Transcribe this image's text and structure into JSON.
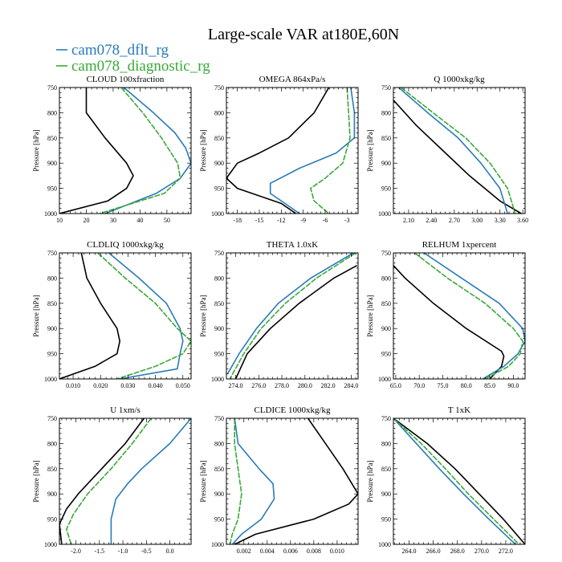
{
  "title": "Large-scale VAR at180E,60N",
  "legend": [
    {
      "name": "cam078_dflt_rg",
      "color": "#2a7bb8"
    },
    {
      "name": "cam078_diagnostic_rg",
      "color": "#3aa838"
    }
  ],
  "reference_color": "#000000",
  "ylabel": "Pressure [hPa]",
  "chart_data": [
    {
      "type": "line",
      "title": "CLOUD 100xfraction",
      "ylabel": "Pressure [hPa]",
      "xlim": [
        10,
        59
      ],
      "ylim": [
        1000,
        750
      ],
      "xticks": [
        10,
        20,
        30,
        40,
        50
      ],
      "xticklabels": [
        "10",
        "20",
        "30",
        "40",
        "50"
      ],
      "yticks": [
        750,
        800,
        850,
        900,
        950,
        1000
      ],
      "series": [
        {
          "color": "black",
          "y": [
            750,
            800,
            850,
            900,
            925,
            950,
            975,
            1000
          ],
          "x": [
            20,
            20,
            27,
            35,
            37.5,
            35,
            28,
            10
          ]
        },
        {
          "name": "cam078_dflt_rg",
          "color": "#2a7bb8",
          "y": [
            750,
            800,
            840,
            870,
            900,
            930,
            960,
            1000
          ],
          "x": [
            34,
            45,
            53,
            57,
            59,
            55,
            46,
            27
          ]
        },
        {
          "name": "cam078_diagnostic_rg",
          "color": "#3aa838",
          "y": [
            750,
            800,
            850,
            900,
            930,
            960,
            1000
          ],
          "x": [
            33,
            41,
            48,
            54,
            55,
            49,
            25
          ]
        }
      ]
    },
    {
      "type": "line",
      "title": "OMEGA  864xPa/s",
      "ylabel": "Pressure [hPa]",
      "xlim": [
        -19.5,
        -1.5
      ],
      "ylim": [
        1000,
        750
      ],
      "xticks": [
        -18,
        -15,
        -12,
        -9,
        -6,
        -3
      ],
      "xticklabels": [
        "-18",
        "-15",
        "-12",
        "-9",
        "-6",
        "-3"
      ],
      "yticks": [
        750,
        800,
        850,
        900,
        950,
        1000
      ],
      "series": [
        {
          "color": "black",
          "y": [
            750,
            800,
            850,
            880,
            900,
            930,
            950,
            980,
            1000
          ],
          "x": [
            -5.5,
            -7.5,
            -11,
            -15,
            -18,
            -19.5,
            -18,
            -12,
            -10
          ]
        },
        {
          "name": "cam078_dflt_rg",
          "color": "#2a7bb8",
          "y": [
            750,
            800,
            850,
            880,
            910,
            940,
            960,
            980,
            1000
          ],
          "x": [
            -2.5,
            -2.0,
            -2.0,
            -4.5,
            -9.5,
            -13.5,
            -13.5,
            -11.5,
            -9.5
          ]
        },
        {
          "name": "cam078_diagnostic_rg",
          "color": "#3aa838",
          "y": [
            750,
            800,
            850,
            900,
            930,
            950,
            975,
            1000
          ],
          "x": [
            -3.0,
            -2.8,
            -2.6,
            -3.6,
            -6.0,
            -8.0,
            -7.5,
            -5.5
          ]
        }
      ]
    },
    {
      "type": "line",
      "title": "Q  1000xkg/kg",
      "ylabel": "Pressure [hPa]",
      "xlim": [
        1.9,
        3.63
      ],
      "ylim": [
        1000,
        750
      ],
      "xticks": [
        2.1,
        2.4,
        2.7,
        3.0,
        3.3,
        3.6
      ],
      "xticklabels": [
        "2.10",
        "2.40",
        "2.70",
        "3.00",
        "3.30",
        "3.60"
      ],
      "yticks": [
        750,
        800,
        850,
        900,
        950,
        1000
      ],
      "series": [
        {
          "color": "black",
          "y": [
            775,
            825,
            875,
            925,
            975,
            1000
          ],
          "x": [
            1.9,
            2.2,
            2.55,
            2.9,
            3.3,
            3.58
          ]
        },
        {
          "name": "cam078_dflt_rg",
          "color": "#2a7bb8",
          "y": [
            750,
            800,
            850,
            900,
            950,
            1000
          ],
          "x": [
            1.97,
            2.35,
            2.75,
            3.05,
            3.3,
            3.4
          ]
        },
        {
          "name": "cam078_diagnostic_rg",
          "color": "#3aa838",
          "y": [
            750,
            800,
            850,
            900,
            950,
            1000
          ],
          "x": [
            2.0,
            2.42,
            2.85,
            3.17,
            3.4,
            3.5
          ]
        }
      ]
    },
    {
      "type": "line",
      "title": "CLDLIQ  1000xkg/kg",
      "ylabel": "Pressure [hPa]",
      "xlim": [
        0.005,
        0.053
      ],
      "ylim": [
        1000,
        750
      ],
      "xticks": [
        0.01,
        0.02,
        0.03,
        0.04,
        0.05
      ],
      "xticklabels": [
        "0.010",
        "0.020",
        "0.030",
        "0.040",
        "0.050"
      ],
      "yticks": [
        750,
        800,
        850,
        900,
        950,
        1000
      ],
      "series": [
        {
          "color": "black",
          "y": [
            750,
            800,
            850,
            900,
            925,
            950,
            975,
            1000
          ],
          "x": [
            0.013,
            0.015,
            0.02,
            0.026,
            0.027,
            0.026,
            0.018,
            0.005
          ]
        },
        {
          "name": "cam078_dflt_rg",
          "color": "#2a7bb8",
          "y": [
            750,
            800,
            850,
            900,
            925,
            950,
            980,
            1000
          ],
          "x": [
            0.023,
            0.034,
            0.044,
            0.049,
            0.05,
            0.049,
            0.048,
            0.027
          ]
        },
        {
          "name": "cam078_diagnostic_rg",
          "color": "#3aa838",
          "y": [
            750,
            800,
            850,
            900,
            925,
            950,
            975,
            1000
          ],
          "x": [
            0.019,
            0.029,
            0.04,
            0.048,
            0.053,
            0.05,
            0.04,
            0.026
          ]
        }
      ]
    },
    {
      "type": "line",
      "title": "THETA  1.0xK",
      "ylabel": "Pressure [hPa]",
      "xlim": [
        273.2,
        284.6
      ],
      "ylim": [
        1000,
        750
      ],
      "xticks": [
        274,
        276,
        278,
        280,
        282,
        284
      ],
      "xticklabels": [
        "274.0",
        "276.0",
        "278.0",
        "280.0",
        "282.0",
        "284.0"
      ],
      "yticks": [
        750,
        800,
        850,
        900,
        950,
        1000
      ],
      "series": [
        {
          "color": "black",
          "y": [
            775,
            800,
            850,
            900,
            950,
            1000
          ],
          "x": [
            284.5,
            282.5,
            279.5,
            277.0,
            275.0,
            274.0
          ]
        },
        {
          "name": "cam078_dflt_rg",
          "color": "#2a7bb8",
          "y": [
            750,
            800,
            850,
            900,
            950,
            990
          ],
          "x": [
            284.2,
            280.5,
            277.7,
            275.8,
            274.3,
            273.3
          ]
        },
        {
          "name": "cam078_diagnostic_rg",
          "color": "#3aa838",
          "y": [
            750,
            800,
            850,
            900,
            950,
            1000
          ],
          "x": [
            284.4,
            281.0,
            278.3,
            276.2,
            274.7,
            273.5
          ]
        }
      ]
    },
    {
      "type": "line",
      "title": "RELHUM  1xpercent",
      "ylabel": "Pressure [hPa]",
      "xlim": [
        64.5,
        92.5
      ],
      "ylim": [
        1000,
        750
      ],
      "xticks": [
        65,
        70,
        75,
        80,
        85,
        90
      ],
      "xticklabels": [
        "65.0",
        "70.0",
        "75.0",
        "80.0",
        "85.0",
        "90.0"
      ],
      "yticks": [
        750,
        800,
        850,
        900,
        950,
        1000
      ],
      "series": [
        {
          "color": "black",
          "y": [
            775,
            800,
            850,
            900,
            945,
            955,
            975,
            1000
          ],
          "x": [
            64.5,
            67,
            73,
            80,
            87.5,
            88,
            87.5,
            85
          ]
        },
        {
          "name": "cam078_dflt_rg",
          "color": "#2a7bb8",
          "y": [
            750,
            800,
            850,
            900,
            925,
            950,
            975,
            1000
          ],
          "x": [
            71,
            79,
            87,
            92,
            92.5,
            91,
            88,
            83.5
          ]
        },
        {
          "name": "cam078_diagnostic_rg",
          "color": "#3aa838",
          "y": [
            750,
            800,
            850,
            900,
            925,
            950,
            975,
            1000
          ],
          "x": [
            69,
            76,
            84,
            90,
            92,
            91.5,
            89,
            84
          ]
        }
      ]
    },
    {
      "type": "line",
      "title": "U  1xm/s",
      "ylabel": "Pressure [hPa]",
      "xlim": [
        -2.35,
        0.45
      ],
      "ylim": [
        1000,
        750
      ],
      "xticks": [
        -2.0,
        -1.5,
        -1.0,
        -0.5,
        0.0
      ],
      "xticklabels": [
        "-2.0",
        "-1.5",
        "-1.0",
        "-0.5",
        "0.0"
      ],
      "yticks": [
        750,
        800,
        850,
        900,
        950,
        1000
      ],
      "series": [
        {
          "color": "black",
          "y": [
            750,
            800,
            850,
            900,
            930,
            960,
            1000
          ],
          "x": [
            -0.55,
            -0.95,
            -1.45,
            -1.95,
            -2.2,
            -2.35,
            -2.3
          ]
        },
        {
          "name": "cam078_dflt_rg",
          "color": "#2a7bb8",
          "y": [
            750,
            800,
            850,
            880,
            910,
            950,
            1000
          ],
          "x": [
            0.45,
            0.0,
            -0.6,
            -0.9,
            -1.15,
            -1.25,
            -1.25
          ]
        },
        {
          "name": "cam078_diagnostic_rg",
          "color": "#3aa838",
          "y": [
            750,
            800,
            850,
            900,
            940,
            970,
            1000
          ],
          "x": [
            -0.4,
            -0.8,
            -1.25,
            -1.75,
            -2.05,
            -2.2,
            -2.1
          ]
        }
      ]
    },
    {
      "type": "line",
      "title": "CLDICE  1000xkg/kg",
      "ylabel": "Pressure [hPa]",
      "xlim": [
        0.0005,
        0.0118
      ],
      "ylim": [
        1000,
        750
      ],
      "xticks": [
        0.002,
        0.004,
        0.006,
        0.008,
        0.01
      ],
      "xticklabels": [
        "0.002",
        "0.004",
        "0.006",
        "0.008",
        "0.010"
      ],
      "yticks": [
        750,
        800,
        850,
        900,
        950,
        1000
      ],
      "series": [
        {
          "color": "black",
          "y": [
            750,
            800,
            850,
            900,
            920,
            950,
            980,
            1000
          ],
          "x": [
            0.0075,
            0.009,
            0.0105,
            0.0118,
            0.011,
            0.008,
            0.003,
            0.0012
          ]
        },
        {
          "name": "cam078_dflt_rg",
          "color": "#2a7bb8",
          "y": [
            750,
            800,
            850,
            880,
            910,
            950,
            980,
            1000
          ],
          "x": [
            0.0012,
            0.0015,
            0.0033,
            0.0045,
            0.0046,
            0.0035,
            0.0018,
            0.001
          ]
        },
        {
          "name": "cam078_diagnostic_rg",
          "color": "#3aa838",
          "y": [
            750,
            800,
            850,
            900,
            950,
            980,
            1000
          ],
          "x": [
            0.0012,
            0.0012,
            0.0015,
            0.0018,
            0.0015,
            0.001,
            0.0008
          ]
        }
      ]
    },
    {
      "type": "line",
      "title": "T  1xK",
      "ylabel": "Pressure [hPa]",
      "xlim": [
        262.7,
        273.6
      ],
      "ylim": [
        1000,
        750
      ],
      "xticks": [
        264,
        266,
        268,
        270,
        272
      ],
      "xticklabels": [
        "264.0",
        "266.0",
        "268.0",
        "270.0",
        "272.0"
      ],
      "yticks": [
        750,
        800,
        850,
        900,
        950,
        1000
      ],
      "series": [
        {
          "color": "black",
          "y": [
            750,
            800,
            850,
            900,
            950,
            1000
          ],
          "x": [
            262.7,
            265.5,
            267.8,
            269.8,
            271.8,
            273.6
          ]
        },
        {
          "name": "cam078_dflt_rg",
          "color": "#2a7bb8",
          "y": [
            750,
            800,
            850,
            900,
            950,
            1000
          ],
          "x": [
            262.7,
            264.6,
            266.5,
            268.5,
            270.6,
            272.8
          ]
        },
        {
          "name": "cam078_diagnostic_rg",
          "color": "#3aa838",
          "y": [
            750,
            800,
            850,
            900,
            950,
            1000
          ],
          "x": [
            262.7,
            265.0,
            267.0,
            268.9,
            271.0,
            273.1
          ]
        }
      ]
    }
  ]
}
